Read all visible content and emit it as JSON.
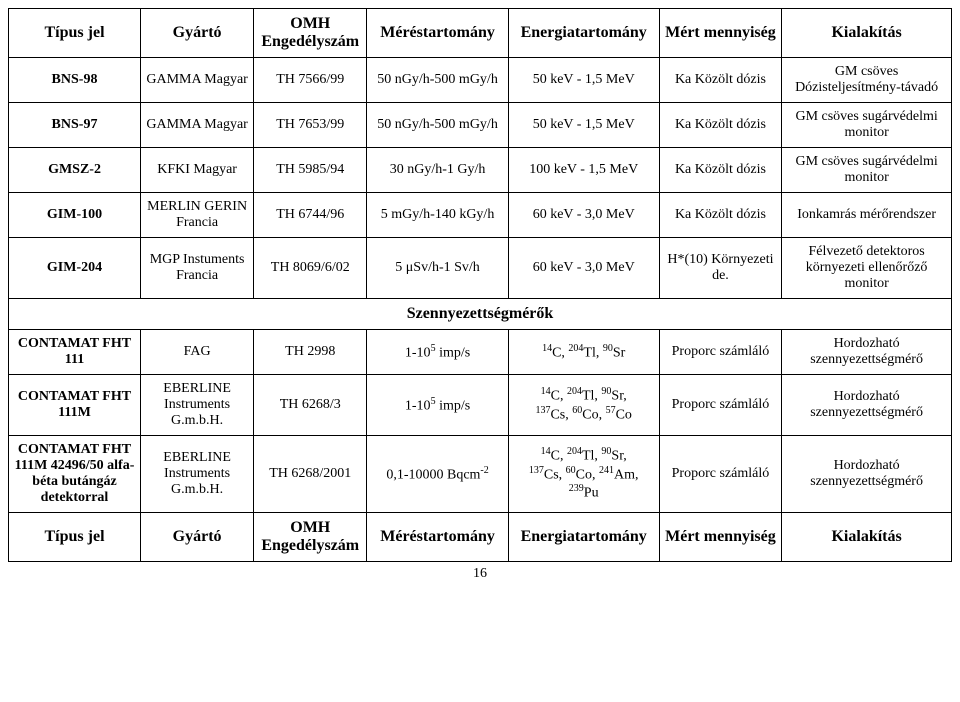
{
  "headers": {
    "type": "Típus jel",
    "maker": "Gyártó",
    "license": "OMH Engedélyszám",
    "meas_range": "Méréstartomány",
    "energy_range": "Energiatartomány",
    "qty": "Mért mennyiség",
    "design": "Kialakítás"
  },
  "rows": [
    {
      "type": "BNS-98",
      "maker": "GAMMA Magyar",
      "license": "TH 7566/99",
      "range": "50 nGy/h-500 mGy/h",
      "energy": "50 keV - 1,5 MeV",
      "qty": "Ka Közölt dózis",
      "design": "GM csöves Dózisteljesítmény-távadó"
    },
    {
      "type": "BNS-97",
      "maker": "GAMMA Magyar",
      "license": "TH 7653/99",
      "range": "50 nGy/h-500 mGy/h",
      "energy": "50 keV - 1,5 MeV",
      "qty": "Ka Közölt dózis",
      "design": "GM csöves sugárvédelmi monitor"
    },
    {
      "type": "GMSZ-2",
      "maker": "KFKI Magyar",
      "license": "TH 5985/94",
      "range": "30 nGy/h-1 Gy/h",
      "energy": "100 keV - 1,5 MeV",
      "qty": "Ka Közölt dózis",
      "design": "GM csöves sugárvédelmi monitor"
    },
    {
      "type": "GIM-100",
      "maker": "MERLIN GERIN  Francia",
      "license": "TH 6744/96",
      "range": "5 mGy/h-140 kGy/h",
      "energy": "60 keV - 3,0 MeV",
      "qty": "Ka Közölt dózis",
      "design": "Ionkamrás mérőrendszer"
    },
    {
      "type": "GIM-204",
      "maker": "MGP Instuments Francia",
      "license": "TH 8069/6/02",
      "range": "5 μSv/h-1 Sv/h",
      "energy": "60 keV - 3,0 MeV",
      "qty": "H*(10) Környezeti de.",
      "design": "Félvezető detektoros környezeti ellenőrőző monitor"
    }
  ],
  "section": "Szennyezettségmérők",
  "rows2": [
    {
      "type": "CONTAMAT FHT 111",
      "maker": "FAG",
      "license": "TH 2998",
      "range_html": "1-10<sup>5</sup> imp/s",
      "energy_html": "<sup>14</sup>C, <sup>204</sup>Tl, <sup>90</sup>Sr",
      "qty": "Proporc számláló",
      "design": "Hordozható szennyezettségmérő"
    },
    {
      "type": "CONTAMAT FHT 111M",
      "maker": "EBERLINE Instruments G.m.b.H.",
      "license": "TH 6268/3",
      "range_html": "1-10<sup>5</sup> imp/s",
      "energy_html": "<sup>14</sup>C, <sup>204</sup>Tl, <sup>90</sup>Sr,<br><sup>137</sup>Cs, <sup>60</sup>Co, <sup>57</sup>Co",
      "qty": "Proporc számláló",
      "design": "Hordozható szennyezettségmérő"
    },
    {
      "type": "CONTAMAT FHT 111M 42496/50 alfa-béta butángáz detektorral",
      "maker": "EBERLINE Instruments G.m.b.H.",
      "license": "TH 6268/2001",
      "range_html": "0,1-10000  Bqcm<sup>-2</sup>",
      "energy_html": "<sup>14</sup>C, <sup>204</sup>Tl, <sup>90</sup>Sr,<br><sup>137</sup>Cs, <sup>60</sup>Co, <sup>241</sup>Am, <sup>239</sup>Pu",
      "qty": "Proporc számláló",
      "design": "Hordozható szennyezettségmérő"
    }
  ],
  "page_number": "16"
}
